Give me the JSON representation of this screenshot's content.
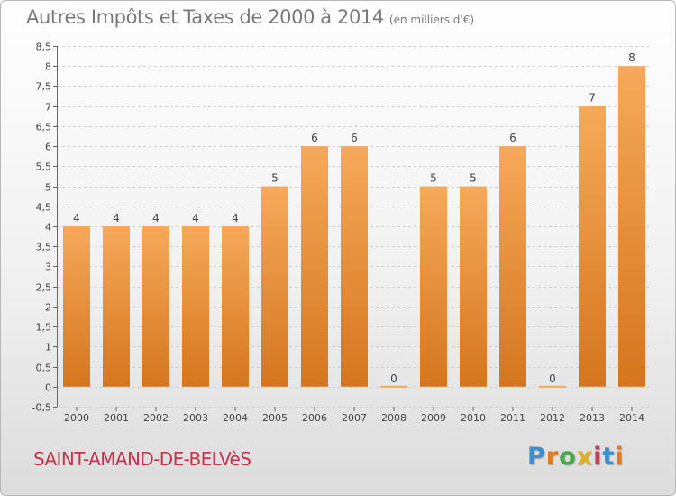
{
  "header": {
    "title": "Autres Impôts et Taxes de 2000 à 2014",
    "unit": "(en milliers d'€)"
  },
  "footer": {
    "commune": "SAINT-AMAND-DE-BELVèS",
    "logo_letters": [
      "P",
      "r",
      "o",
      "x",
      "i",
      "t",
      "i"
    ],
    "logo_colors": [
      "#3f8fd0",
      "#e07b20",
      "#4aa84a",
      "#e0b020",
      "#c23f5e",
      "#3f8fd0",
      "#e07b20"
    ]
  },
  "colors": {
    "bar_light": "#f6a95a",
    "bar_dark": "#d5761e",
    "grid": "#cfcfcf",
    "axis_text": "#444444",
    "title": "#7a7a7a",
    "commune": "#c4334f"
  },
  "chart_data": {
    "type": "bar",
    "title": "Autres Impôts et Taxes de 2000 à 2014",
    "subtitle": "(en milliers d'€)",
    "xlabel": "",
    "ylabel": "",
    "categories": [
      "2000",
      "2001",
      "2002",
      "2003",
      "2004",
      "2005",
      "2006",
      "2007",
      "2008",
      "2009",
      "2010",
      "2011",
      "2012",
      "2013",
      "2014"
    ],
    "values": [
      4,
      4,
      4,
      4,
      4,
      5,
      6,
      6,
      0,
      5,
      5,
      6,
      0,
      7,
      8
    ],
    "data_labels": [
      "4",
      "4",
      "4",
      "4",
      "4",
      "5",
      "6",
      "6",
      "0",
      "5",
      "5",
      "6",
      "0",
      "7",
      "8"
    ],
    "ylim": [
      -0.5,
      8.5
    ],
    "y_ticks": [
      -0.5,
      0,
      0.5,
      1,
      1.5,
      2,
      2.5,
      3,
      3.5,
      4,
      4.5,
      5,
      5.5,
      6,
      6.5,
      7,
      7.5,
      8,
      8.5
    ],
    "y_tick_labels": [
      "-0,5",
      "0",
      "0,5",
      "1",
      "1,5",
      "2",
      "2,5",
      "3",
      "3,5",
      "4",
      "4,5",
      "5",
      "5,5",
      "6",
      "6,5",
      "7",
      "7,5",
      "8",
      "8,5"
    ],
    "grid": true,
    "legend": "none"
  }
}
